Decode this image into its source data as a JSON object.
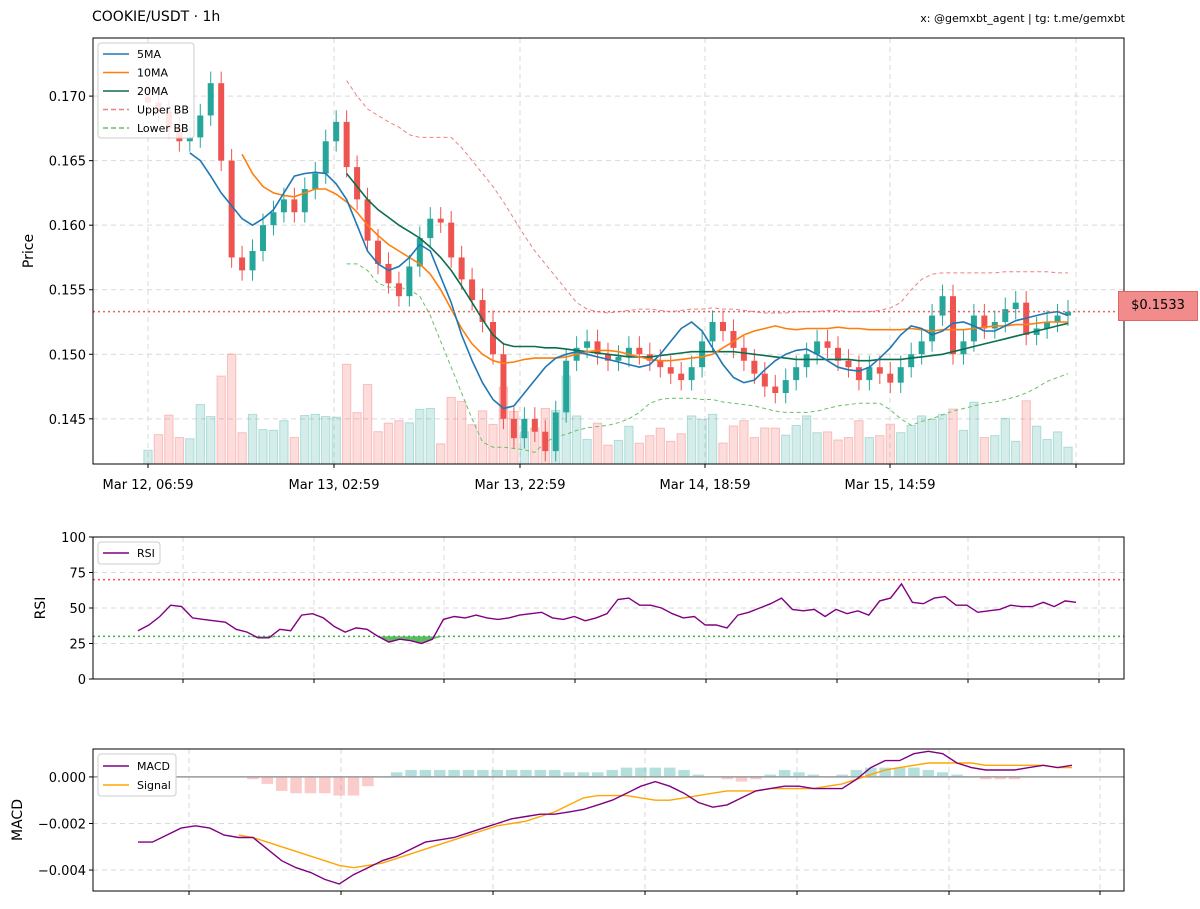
{
  "header": {
    "title": "COOKIE/USDT · 1h",
    "credit": "x: @gemxbt_agent | tg: t.me/gemxbt"
  },
  "colors": {
    "up": "#26a69a",
    "down": "#ef5350",
    "ma5": "#1f77b4",
    "ma10": "#ff7f0e",
    "ma20": "#0b6e4f",
    "bb_upper": "#f08080",
    "bb_lower": "#6abf69",
    "rsi": "#800080",
    "macd": "#800080",
    "signal": "#ffa500",
    "price_line": "#e06666"
  },
  "chart_data": [
    {
      "type": "candlestick",
      "ylabel": "Price",
      "x_tick_labels": [
        "Mar 12, 06:59",
        "Mar 13, 02:59",
        "Mar 13, 22:59",
        "Mar 14, 18:59",
        "Mar 15, 14:59"
      ],
      "x_tick_index": [
        0,
        20,
        40,
        60,
        80
      ],
      "ylim": [
        0.1415,
        0.1745
      ],
      "yticks": [
        0.145,
        0.15,
        0.155,
        0.16,
        0.165,
        0.17
      ],
      "ytick_labels": [
        "0.145",
        "0.150",
        "0.155",
        "0.160",
        "0.165",
        "0.170"
      ],
      "current_price": 0.1533,
      "current_price_label": "$0.1533",
      "legend": [
        "5MA",
        "10MA",
        "20MA",
        "Upper BB",
        "Lower BB"
      ],
      "close": [
        0.1695,
        0.1688,
        0.1675,
        0.1665,
        0.1668,
        0.1685,
        0.171,
        0.165,
        0.1575,
        0.1565,
        0.158,
        0.16,
        0.161,
        0.162,
        0.161,
        0.1628,
        0.164,
        0.1665,
        0.168,
        0.1645,
        0.162,
        0.1588,
        0.157,
        0.1555,
        0.1545,
        0.1568,
        0.159,
        0.1605,
        0.1602,
        0.1575,
        0.1558,
        0.1542,
        0.1525,
        0.15,
        0.145,
        0.1435,
        0.145,
        0.144,
        0.1425,
        0.1455,
        0.1495,
        0.1505,
        0.151,
        0.15,
        0.1495,
        0.1498,
        0.1505,
        0.15,
        0.1495,
        0.149,
        0.1485,
        0.148,
        0.149,
        0.151,
        0.1525,
        0.1518,
        0.1505,
        0.1495,
        0.1485,
        0.1475,
        0.147,
        0.148,
        0.149,
        0.15,
        0.151,
        0.1505,
        0.1495,
        0.149,
        0.148,
        0.149,
        0.1485,
        0.1478,
        0.149,
        0.15,
        0.151,
        0.153,
        0.1545,
        0.15,
        0.151,
        0.153,
        0.152,
        0.1525,
        0.1535,
        0.154,
        0.1515,
        0.152,
        0.1525,
        0.153,
        0.1533
      ],
      "ma5": [
        null,
        null,
        null,
        null,
        0.1656,
        0.165,
        0.1638,
        0.1625,
        0.1615,
        0.1605,
        0.16,
        0.1605,
        0.1612,
        0.1625,
        0.1638,
        0.164,
        0.1641,
        0.164,
        0.1632,
        0.162,
        0.16,
        0.158,
        0.157,
        0.1565,
        0.1568,
        0.1575,
        0.1585,
        0.158,
        0.156,
        0.154,
        0.1515,
        0.1495,
        0.1478,
        0.1465,
        0.1458,
        0.146,
        0.147,
        0.148,
        0.149,
        0.1497,
        0.15,
        0.1502,
        0.15,
        0.1498,
        0.1496,
        0.1494,
        0.1492,
        0.149,
        0.1492,
        0.15,
        0.151,
        0.152,
        0.1525,
        0.1518,
        0.1505,
        0.1492,
        0.1482,
        0.1478,
        0.148,
        0.1488,
        0.1495,
        0.15,
        0.1503,
        0.1504,
        0.15,
        0.1495,
        0.149,
        0.1488,
        0.1487,
        0.149,
        0.1497,
        0.1505,
        0.1515,
        0.1522,
        0.152,
        0.1515,
        0.1518,
        0.1524,
        0.1525,
        0.1522,
        0.1518,
        0.1518,
        0.1522,
        0.1526,
        0.1528,
        0.153,
        0.1532,
        0.1533,
        0.153
      ],
      "ma10": [
        null,
        null,
        null,
        null,
        null,
        null,
        null,
        null,
        null,
        0.1655,
        0.164,
        0.163,
        0.1625,
        0.1623,
        0.1622,
        0.1625,
        0.1628,
        0.1628,
        0.1624,
        0.1618,
        0.161,
        0.16,
        0.1592,
        0.1585,
        0.158,
        0.1575,
        0.157,
        0.1562,
        0.155,
        0.1535,
        0.152,
        0.1508,
        0.15,
        0.1495,
        0.1493,
        0.1494,
        0.1496,
        0.1497,
        0.1497,
        0.1497,
        0.1498,
        0.15,
        0.1502,
        0.1503,
        0.1503,
        0.1502,
        0.15,
        0.1498,
        0.1496,
        0.1495,
        0.1495,
        0.1496,
        0.1497,
        0.1498,
        0.15,
        0.1505,
        0.151,
        0.1515,
        0.1518,
        0.152,
        0.1522,
        0.152,
        0.1519,
        0.152,
        0.152,
        0.152,
        0.1521,
        0.152,
        0.152,
        0.1519,
        0.1519,
        0.1519,
        0.1519,
        0.152,
        0.1519,
        0.1518,
        0.1519,
        0.1519,
        0.1519,
        0.152,
        0.1521,
        0.1522,
        0.1522,
        0.1523,
        0.1523,
        0.1524,
        0.1525,
        0.1525,
        0.1525
      ],
      "ma20": [
        null,
        null,
        null,
        null,
        null,
        null,
        null,
        null,
        null,
        null,
        null,
        null,
        null,
        null,
        null,
        null,
        null,
        null,
        null,
        0.164,
        0.163,
        0.162,
        0.1612,
        0.1606,
        0.16,
        0.1595,
        0.159,
        0.1583,
        0.1575,
        0.1565,
        0.1553,
        0.154,
        0.1527,
        0.1515,
        0.1508,
        0.1506,
        0.1506,
        0.1506,
        0.1505,
        0.1505,
        0.1504,
        0.1503,
        0.1502,
        0.1501,
        0.15,
        0.1499,
        0.1498,
        0.1498,
        0.1498,
        0.1499,
        0.15,
        0.1501,
        0.1502,
        0.1502,
        0.1502,
        0.1502,
        0.1502,
        0.1501,
        0.15,
        0.1499,
        0.1498,
        0.1497,
        0.1496,
        0.1496,
        0.1496,
        0.1496,
        0.1496,
        0.1496,
        0.1495,
        0.1495,
        0.1496,
        0.1496,
        0.1496,
        0.1497,
        0.1498,
        0.1499,
        0.15,
        0.1502,
        0.1504,
        0.1506,
        0.1508,
        0.151,
        0.1512,
        0.1514,
        0.1516,
        0.1518,
        0.152,
        0.1522,
        0.1524
      ],
      "bb_upper": [
        null,
        null,
        null,
        null,
        null,
        null,
        null,
        null,
        null,
        null,
        null,
        null,
        null,
        null,
        null,
        null,
        null,
        null,
        null,
        0.1712,
        0.17,
        0.169,
        0.1685,
        0.168,
        0.1676,
        0.167,
        0.1668,
        0.1668,
        0.1668,
        0.1668,
        0.166,
        0.165,
        0.164,
        0.163,
        0.1618,
        0.1605,
        0.1592,
        0.158,
        0.157,
        0.156,
        0.155,
        0.154,
        0.1535,
        0.1533,
        0.1532,
        0.1533,
        0.1534,
        0.1535,
        0.1535,
        0.1534,
        0.1533,
        0.1534,
        0.1535,
        0.1535,
        0.1536,
        0.1535,
        0.1535,
        0.1534,
        0.1533,
        0.1532,
        0.1532,
        0.1532,
        0.1533,
        0.1533,
        0.1533,
        0.1534,
        0.1534,
        0.1533,
        0.1533,
        0.1533,
        0.1534,
        0.1536,
        0.154,
        0.155,
        0.1558,
        0.1562,
        0.1563,
        0.1563,
        0.1563,
        0.1563,
        0.1563,
        0.1563,
        0.1564,
        0.1564,
        0.1564,
        0.1564,
        0.1564,
        0.1563,
        0.1563
      ],
      "bb_lower": [
        null,
        null,
        null,
        null,
        null,
        null,
        null,
        null,
        null,
        null,
        null,
        null,
        null,
        null,
        null,
        null,
        null,
        null,
        null,
        0.157,
        0.157,
        0.1565,
        0.1555,
        0.1552,
        0.1552,
        0.155,
        0.1545,
        0.153,
        0.151,
        0.149,
        0.147,
        0.145,
        0.1432,
        0.1428,
        0.1428,
        0.1427,
        0.1426,
        0.1424,
        0.1432,
        0.1436,
        0.1438,
        0.1441,
        0.1443,
        0.1444,
        0.1445,
        0.1447,
        0.145,
        0.1455,
        0.1462,
        0.1465,
        0.1466,
        0.1466,
        0.1466,
        0.1465,
        0.1465,
        0.1463,
        0.1462,
        0.1461,
        0.146,
        0.1458,
        0.1456,
        0.1455,
        0.1455,
        0.1455,
        0.1456,
        0.1458,
        0.146,
        0.1461,
        0.1462,
        0.1462,
        0.1462,
        0.1457,
        0.145,
        0.1445,
        0.1448,
        0.145,
        0.1453,
        0.1456,
        0.1458,
        0.146,
        0.1462,
        0.1463,
        0.1465,
        0.1467,
        0.147,
        0.1474,
        0.1479,
        0.1482,
        0.1485
      ]
    },
    {
      "type": "line",
      "series": [
        {
          "name": "RSI",
          "values": [
            34,
            38,
            44,
            52,
            51,
            43,
            42,
            41,
            40,
            35,
            33,
            29,
            29,
            35,
            34,
            45,
            46,
            43,
            37,
            33,
            36,
            35,
            30,
            26,
            28,
            27,
            25,
            28,
            42,
            44,
            43,
            45,
            43,
            42,
            43,
            45,
            46,
            47,
            43,
            42,
            44,
            41,
            43,
            46,
            56,
            57,
            52,
            52,
            50,
            46,
            43,
            44,
            38,
            38,
            36,
            45,
            47,
            50,
            53,
            57,
            49,
            48,
            49,
            44,
            49,
            46,
            48,
            45,
            55,
            57,
            67,
            54,
            53,
            57,
            58,
            52,
            52,
            47,
            48,
            49,
            52,
            51,
            51,
            54,
            51,
            55,
            54
          ]
        }
      ],
      "ylabel": "RSI",
      "ylim": [
        0,
        100
      ],
      "yticks": [
        0,
        25,
        50,
        75,
        100
      ],
      "overbought": 70,
      "oversold": 30,
      "legend": [
        "RSI"
      ]
    },
    {
      "type": "line+bar",
      "ylabel": "MACD",
      "ylim": [
        -0.0049,
        0.0012
      ],
      "yticks": [
        -0.004,
        -0.002,
        0.0
      ],
      "ytick_labels": [
        "−0.004",
        "−0.002",
        "0.000"
      ],
      "legend": [
        "MACD",
        "Signal"
      ],
      "series": [
        {
          "name": "MACD",
          "values": [
            -0.0028,
            -0.0028,
            -0.0025,
            -0.0022,
            -0.0021,
            -0.0022,
            -0.0025,
            -0.0026,
            -0.0026,
            -0.0031,
            -0.0036,
            -0.0039,
            -0.0041,
            -0.0044,
            -0.0046,
            -0.0042,
            -0.0039,
            -0.0036,
            -0.0034,
            -0.0031,
            -0.0028,
            -0.0027,
            -0.0026,
            -0.0024,
            -0.0022,
            -0.002,
            -0.0018,
            -0.0017,
            -0.0016,
            -0.0016,
            -0.0015,
            -0.0014,
            -0.0012,
            -0.001,
            -0.0007,
            -0.0004,
            -0.0002,
            -0.0004,
            -0.0007,
            -0.0011,
            -0.0013,
            -0.0012,
            -0.0009,
            -0.0006,
            -0.0005,
            -0.0004,
            -0.0004,
            -0.0005,
            -0.0005,
            -0.0005,
            -0.0001,
            0.0004,
            0.0007,
            0.0007,
            0.001,
            0.0011,
            0.001,
            0.0006,
            0.0004,
            0.0003,
            0.0003,
            0.0003,
            0.0004,
            0.0005,
            0.0004,
            0.0005
          ]
        },
        {
          "name": "Signal",
          "values": [
            null,
            null,
            null,
            null,
            null,
            null,
            null,
            -0.0025,
            -0.0026,
            -0.0028,
            -0.003,
            -0.0032,
            -0.0034,
            -0.0036,
            -0.0038,
            -0.0039,
            -0.0038,
            -0.0037,
            -0.0035,
            -0.0033,
            -0.0031,
            -0.0029,
            -0.0027,
            -0.0025,
            -0.0023,
            -0.0021,
            -0.002,
            -0.0019,
            -0.0017,
            -0.0015,
            -0.0012,
            -0.0009,
            -0.0008,
            -0.0008,
            -0.0008,
            -0.0009,
            -0.001,
            -0.001,
            -0.0009,
            -0.0008,
            -0.0007,
            -0.0006,
            -0.0006,
            -0.0006,
            -0.0005,
            -0.0005,
            -0.0005,
            -0.0005,
            -0.0004,
            -0.0003,
            -0.0001,
            0.0001,
            0.0003,
            0.0004,
            0.0005,
            0.0006,
            0.0006,
            0.0006,
            0.0006,
            0.0005,
            0.0005,
            0.0005,
            0.0005,
            0.0005,
            0.0004,
            0.0004
          ]
        },
        {
          "name": "Histogram",
          "values": [
            null,
            null,
            null,
            null,
            null,
            null,
            null,
            null,
            -0.0001,
            -0.0003,
            -0.0006,
            -0.0007,
            -0.0007,
            -0.0007,
            -0.0008,
            -0.0008,
            -0.0004,
            null,
            0.0002,
            0.0003,
            0.0003,
            0.0003,
            0.0003,
            0.0003,
            0.0003,
            0.0003,
            0.0003,
            0.0003,
            0.0003,
            0.0003,
            0.0002,
            0.0002,
            0.0002,
            0.0003,
            0.0004,
            0.0004,
            0.0004,
            0.0004,
            0.0003,
            0.0001,
            0.0,
            -0.0001,
            -0.0002,
            -0.0001,
            0.0001,
            0.0003,
            0.0002,
            0.0001,
            0.0,
            0.0001,
            0.0003,
            0.0004,
            0.0004,
            0.0004,
            0.0004,
            0.0003,
            0.0002,
            0.0001,
            0.0,
            -0.0001,
            -0.0001,
            -0.0001,
            0.0,
            0.0,
            0.0,
            0.0
          ]
        }
      ]
    }
  ]
}
